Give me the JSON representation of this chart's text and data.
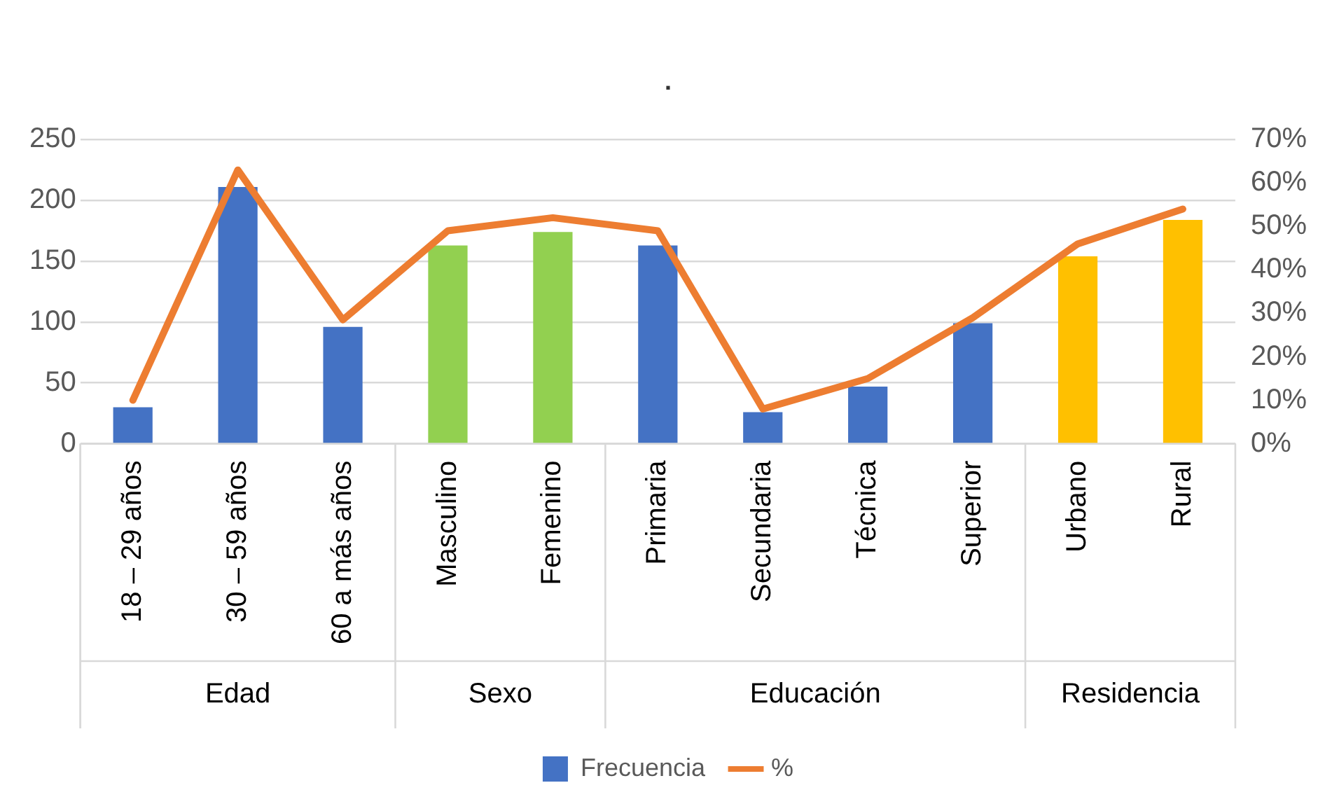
{
  "chart_data": {
    "type": "bar",
    "title": ".",
    "categories": [
      "18 – 29 años",
      "30 – 59 años",
      "60 a más años",
      "Masculino",
      "Femenino",
      "Primaria",
      "Secundaria",
      "Técnica",
      "Superior",
      "Urbano",
      "Rural"
    ],
    "series": [
      {
        "name": "Frecuencia",
        "color": "#4472c4",
        "colors": [
          "#4472c4",
          "#4472c4",
          "#4472c4",
          "#92d050",
          "#92d050",
          "#4472c4",
          "#4472c4",
          "#4472c4",
          "#4472c4",
          "#ffc000",
          "#ffc000"
        ],
        "values": [
          30,
          211,
          96,
          163,
          174,
          163,
          26,
          47,
          99,
          154,
          184
        ]
      },
      {
        "name": "%",
        "type": "line",
        "axis": "y2",
        "color": "#ed7d31",
        "values": [
          10,
          63,
          28.5,
          49,
          52,
          49,
          8,
          15,
          29,
          46,
          54
        ]
      }
    ],
    "ylim": [
      0,
      250
    ],
    "yticks": [
      0,
      50,
      100,
      150,
      200,
      250
    ],
    "y2lim": [
      0,
      70
    ],
    "y2ticks": [
      {
        "value": 0,
        "label": "0%"
      },
      {
        "value": 10,
        "label": "10%"
      },
      {
        "value": 20,
        "label": "20%"
      },
      {
        "value": 30,
        "label": "30%"
      },
      {
        "value": 40,
        "label": "40%"
      },
      {
        "value": 50,
        "label": "50%"
      },
      {
        "value": 60,
        "label": "60%"
      },
      {
        "value": 70,
        "label": "70%"
      }
    ],
    "annotations": [
      "Edad",
      "Sexo",
      "Educación",
      "Residencia"
    ],
    "grid": "y",
    "legend": "bottom",
    "marker": "none"
  }
}
